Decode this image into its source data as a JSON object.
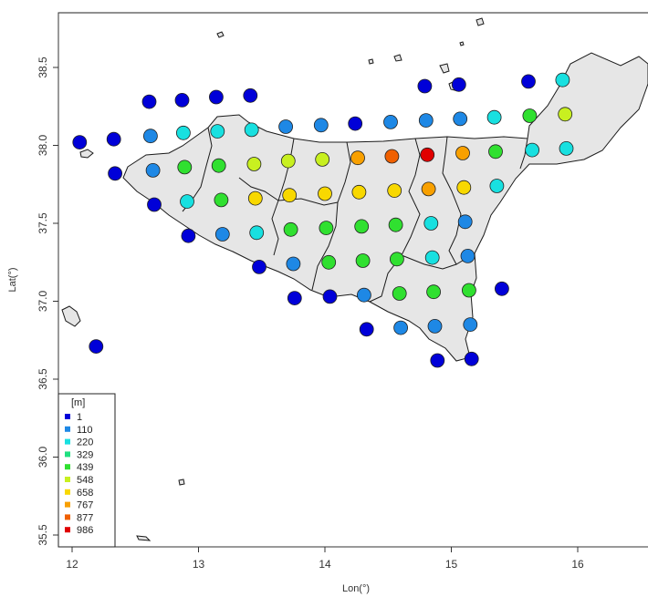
{
  "chart_data": {
    "type": "scatter",
    "title": "",
    "xlabel": "Lon(°)",
    "ylabel": "Lat(°)",
    "xlim": [
      11.92,
      16.58
    ],
    "ylim": [
      35.45,
      38.88
    ],
    "x_ticks": [
      "12",
      "13",
      "14",
      "15",
      "16"
    ],
    "y_ticks": [
      "35.5",
      "36.0",
      "36.5",
      "37.0",
      "37.5",
      "38.0",
      "38.5"
    ],
    "x_tick_values": [
      12,
      13,
      14,
      15,
      16
    ],
    "y_tick_values": [
      35.5,
      36.0,
      36.5,
      37.0,
      37.5,
      38.0,
      38.5
    ],
    "grid": false,
    "legend": {
      "placement": "bottom-left",
      "title": "[m]",
      "entries": [
        {
          "label": "1",
          "color": "#0000d8"
        },
        {
          "label": "110",
          "color": "#1e88e5"
        },
        {
          "label": "220",
          "color": "#18e0e0"
        },
        {
          "label": "329",
          "color": "#20e080"
        },
        {
          "label": "439",
          "color": "#30e030"
        },
        {
          "label": "548",
          "color": "#c8f020"
        },
        {
          "label": "658",
          "color": "#f8d800"
        },
        {
          "label": "767",
          "color": "#f8a000"
        },
        {
          "label": "877",
          "color": "#f06000"
        },
        {
          "label": "986",
          "color": "#e00000"
        }
      ]
    },
    "land_color": "#e6e6e6",
    "points": [
      {
        "x": 12.06,
        "y": 38.02,
        "c": 0
      },
      {
        "x": 12.33,
        "y": 38.04,
        "c": 0
      },
      {
        "x": 12.34,
        "y": 37.82,
        "c": 0
      },
      {
        "x": 12.61,
        "y": 38.28,
        "c": 0
      },
      {
        "x": 12.62,
        "y": 38.06,
        "c": 1
      },
      {
        "x": 12.64,
        "y": 37.84,
        "c": 1
      },
      {
        "x": 12.65,
        "y": 37.62,
        "c": 0
      },
      {
        "x": 12.87,
        "y": 38.29,
        "c": 0
      },
      {
        "x": 12.88,
        "y": 38.08,
        "c": 2
      },
      {
        "x": 12.89,
        "y": 37.86,
        "c": 4
      },
      {
        "x": 12.91,
        "y": 37.64,
        "c": 2
      },
      {
        "x": 12.92,
        "y": 37.42,
        "c": 0
      },
      {
        "x": 13.14,
        "y": 38.31,
        "c": 0
      },
      {
        "x": 13.15,
        "y": 38.09,
        "c": 2
      },
      {
        "x": 13.16,
        "y": 37.87,
        "c": 4
      },
      {
        "x": 13.18,
        "y": 37.65,
        "c": 4
      },
      {
        "x": 13.19,
        "y": 37.43,
        "c": 1
      },
      {
        "x": 13.41,
        "y": 38.32,
        "c": 0
      },
      {
        "x": 13.42,
        "y": 38.1,
        "c": 2
      },
      {
        "x": 13.44,
        "y": 37.88,
        "c": 5
      },
      {
        "x": 13.45,
        "y": 37.66,
        "c": 6
      },
      {
        "x": 13.46,
        "y": 37.44,
        "c": 2
      },
      {
        "x": 13.48,
        "y": 37.22,
        "c": 0
      },
      {
        "x": 13.69,
        "y": 38.12,
        "c": 1
      },
      {
        "x": 13.71,
        "y": 37.9,
        "c": 5
      },
      {
        "x": 13.72,
        "y": 37.68,
        "c": 6
      },
      {
        "x": 13.73,
        "y": 37.46,
        "c": 4
      },
      {
        "x": 13.75,
        "y": 37.24,
        "c": 1
      },
      {
        "x": 13.76,
        "y": 37.02,
        "c": 0
      },
      {
        "x": 13.97,
        "y": 38.13,
        "c": 1
      },
      {
        "x": 13.98,
        "y": 37.91,
        "c": 5
      },
      {
        "x": 14.0,
        "y": 37.69,
        "c": 6
      },
      {
        "x": 14.01,
        "y": 37.47,
        "c": 4
      },
      {
        "x": 14.03,
        "y": 37.25,
        "c": 4
      },
      {
        "x": 14.04,
        "y": 37.03,
        "c": 0
      },
      {
        "x": 14.24,
        "y": 38.14,
        "c": 0
      },
      {
        "x": 14.26,
        "y": 37.92,
        "c": 7
      },
      {
        "x": 14.27,
        "y": 37.7,
        "c": 6
      },
      {
        "x": 14.29,
        "y": 37.48,
        "c": 4
      },
      {
        "x": 14.3,
        "y": 37.26,
        "c": 4
      },
      {
        "x": 14.31,
        "y": 37.04,
        "c": 1
      },
      {
        "x": 14.33,
        "y": 36.82,
        "c": 0
      },
      {
        "x": 14.52,
        "y": 38.15,
        "c": 1
      },
      {
        "x": 14.53,
        "y": 37.93,
        "c": 8
      },
      {
        "x": 14.55,
        "y": 37.71,
        "c": 6
      },
      {
        "x": 14.56,
        "y": 37.49,
        "c": 4
      },
      {
        "x": 14.57,
        "y": 37.27,
        "c": 4
      },
      {
        "x": 14.59,
        "y": 37.05,
        "c": 4
      },
      {
        "x": 14.6,
        "y": 36.83,
        "c": 1
      },
      {
        "x": 14.79,
        "y": 38.38,
        "c": 0
      },
      {
        "x": 14.8,
        "y": 38.16,
        "c": 1
      },
      {
        "x": 14.81,
        "y": 37.94,
        "c": 9
      },
      {
        "x": 14.82,
        "y": 37.72,
        "c": 7
      },
      {
        "x": 14.84,
        "y": 37.5,
        "c": 2
      },
      {
        "x": 14.85,
        "y": 37.28,
        "c": 2
      },
      {
        "x": 14.86,
        "y": 37.06,
        "c": 4
      },
      {
        "x": 14.87,
        "y": 36.84,
        "c": 1
      },
      {
        "x": 14.89,
        "y": 36.62,
        "c": 0
      },
      {
        "x": 15.06,
        "y": 38.39,
        "c": 0
      },
      {
        "x": 15.07,
        "y": 38.17,
        "c": 1
      },
      {
        "x": 15.09,
        "y": 37.95,
        "c": 7
      },
      {
        "x": 15.1,
        "y": 37.73,
        "c": 6
      },
      {
        "x": 15.11,
        "y": 37.51,
        "c": 1
      },
      {
        "x": 15.13,
        "y": 37.29,
        "c": 1
      },
      {
        "x": 15.14,
        "y": 37.07,
        "c": 4
      },
      {
        "x": 15.15,
        "y": 36.85,
        "c": 1
      },
      {
        "x": 15.16,
        "y": 36.63,
        "c": 0
      },
      {
        "x": 15.34,
        "y": 38.18,
        "c": 2
      },
      {
        "x": 15.35,
        "y": 37.96,
        "c": 4
      },
      {
        "x": 15.36,
        "y": 37.74,
        "c": 2
      },
      {
        "x": 15.4,
        "y": 37.08,
        "c": 0
      },
      {
        "x": 15.61,
        "y": 38.41,
        "c": 0
      },
      {
        "x": 15.62,
        "y": 38.19,
        "c": 4
      },
      {
        "x": 15.64,
        "y": 37.97,
        "c": 2
      },
      {
        "x": 15.88,
        "y": 38.42,
        "c": 2
      },
      {
        "x": 15.9,
        "y": 38.2,
        "c": 5
      },
      {
        "x": 15.91,
        "y": 37.98,
        "c": 2
      },
      {
        "x": 12.19,
        "y": 36.71,
        "c": 0
      }
    ]
  }
}
